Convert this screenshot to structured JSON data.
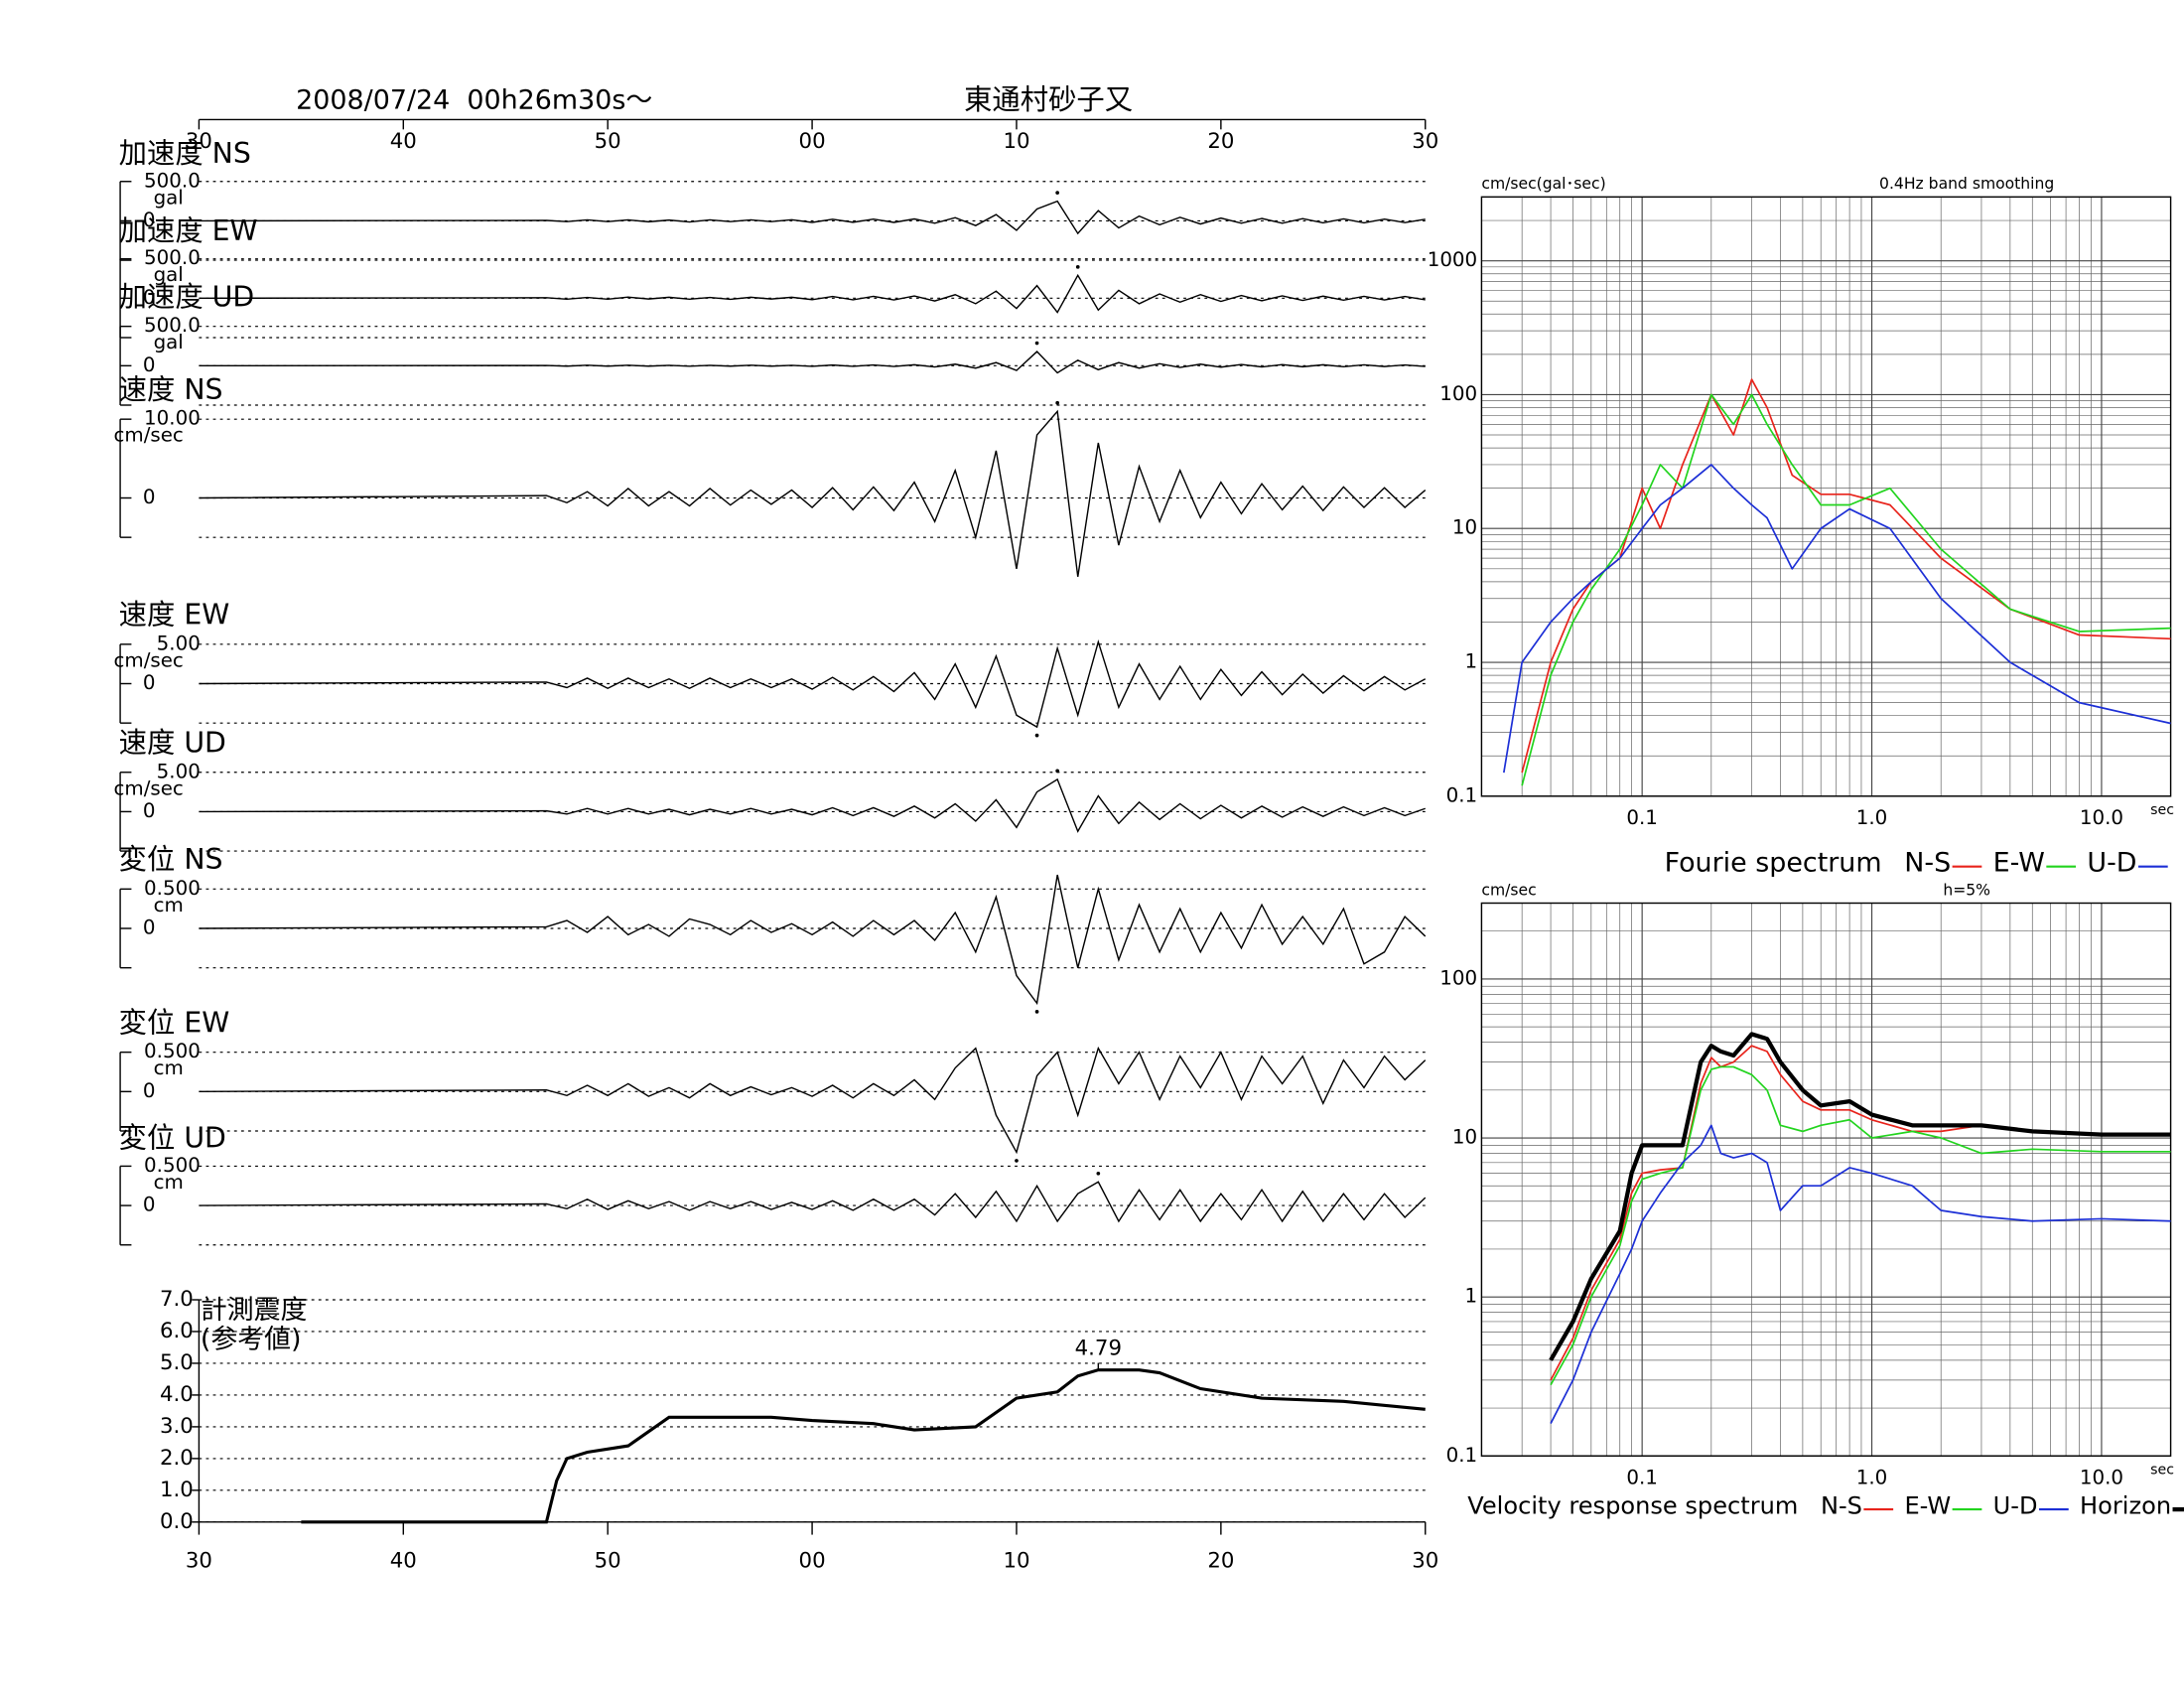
{
  "header": {
    "date": "2008/07/24  00h26m30s〜",
    "station": "東通村砂子又"
  },
  "chart_data": [
    {
      "type": "waveform",
      "color": "#000000",
      "xlim": [
        0,
        60
      ],
      "xticks": [
        {
          "value": 0,
          "label": "30"
        },
        {
          "value": 10,
          "label": "40"
        },
        {
          "value": 20,
          "label": "50"
        },
        {
          "value": 30,
          "label": "00"
        },
        {
          "value": 40,
          "label": "10"
        },
        {
          "value": 50,
          "label": "20"
        },
        {
          "value": 60,
          "label": "30"
        }
      ],
      "x": [
        0,
        17,
        18,
        19,
        20,
        21,
        22,
        23,
        24,
        25,
        26,
        27,
        28,
        29,
        30,
        31,
        32,
        33,
        34,
        35,
        36,
        37,
        38,
        39,
        40,
        41,
        42,
        43,
        44,
        45,
        46,
        47,
        48,
        49,
        50,
        51,
        52,
        53,
        54,
        55,
        56,
        57,
        58,
        59,
        60
      ],
      "series": [
        {
          "name": "加速度 NS",
          "unit": "gal",
          "ylim": [
            -500,
            500
          ],
          "yticks": [
            {
              "value": 500,
              "label": "500.0"
            },
            0
          ],
          "values": [
            0,
            5,
            -10,
            12,
            -10,
            12,
            -12,
            10,
            -14,
            12,
            -10,
            12,
            -10,
            14,
            -20,
            20,
            -18,
            22,
            -20,
            24,
            -30,
            40,
            -60,
            80,
            -120,
            150,
            250,
            -160,
            130,
            -90,
            60,
            -50,
            45,
            -40,
            35,
            -30,
            30,
            -30,
            28,
            -25,
            25,
            -25,
            22,
            -22,
            20
          ]
        },
        {
          "name": "加速度 EW",
          "unit": "gal",
          "ylim": [
            -500,
            500
          ],
          "yticks": [
            {
              "value": 500,
              "label": "500.0"
            },
            0
          ],
          "values": [
            0,
            6,
            -12,
            10,
            -12,
            14,
            -10,
            12,
            -12,
            10,
            -14,
            12,
            -10,
            12,
            -18,
            22,
            -20,
            24,
            -22,
            28,
            -35,
            45,
            -70,
            90,
            -130,
            160,
            -180,
            290,
            -150,
            100,
            -70,
            55,
            -50,
            45,
            -40,
            35,
            -32,
            30,
            -28,
            26,
            -25,
            24,
            -22,
            22,
            -20
          ]
        },
        {
          "name": "加速度 UD",
          "unit": "gal",
          "ylim": [
            -500,
            500
          ],
          "yticks": [
            {
              "value": 500,
              "label": "500.0"
            },
            0
          ],
          "values": [
            0,
            3,
            -5,
            6,
            -5,
            6,
            -5,
            5,
            -6,
            5,
            -5,
            6,
            -5,
            5,
            -8,
            9,
            -8,
            10,
            -9,
            12,
            -15,
            20,
            -30,
            40,
            -60,
            180,
            -90,
            70,
            -50,
            40,
            -30,
            25,
            -22,
            20,
            -18,
            16,
            -15,
            14,
            -13,
            12,
            -12,
            11,
            -10,
            10,
            -9
          ]
        },
        {
          "name": "速度 NS",
          "unit": "cm/sec",
          "ylim": [
            -10,
            10
          ],
          "yticks": [
            {
              "value": 10,
              "label": "10.00"
            },
            0
          ],
          "values": [
            0,
            0.3,
            -0.6,
            0.8,
            -1,
            1.2,
            -1,
            0.8,
            -1,
            1.2,
            -0.9,
            1,
            -0.8,
            1,
            -1.2,
            1.3,
            -1.5,
            1.4,
            -1.6,
            2,
            -3,
            3.5,
            -5,
            6,
            -9,
            8,
            11,
            -10,
            7,
            -6,
            4,
            -3,
            3.5,
            -2.5,
            2,
            -2,
            1.8,
            -1.5,
            1.5,
            -1.6,
            1.4,
            -1.2,
            1.3,
            -1.2,
            1
          ]
        },
        {
          "name": "速度 EW",
          "unit": "cm/sec",
          "ylim": [
            -5,
            5
          ],
          "yticks": [
            {
              "value": 5,
              "label": "5.00"
            },
            0
          ],
          "values": [
            0,
            0.2,
            -0.5,
            0.7,
            -0.6,
            0.7,
            -0.5,
            0.6,
            -0.6,
            0.7,
            -0.5,
            0.6,
            -0.5,
            0.6,
            -0.7,
            0.8,
            -0.8,
            0.9,
            -1,
            1.4,
            -2,
            2.5,
            -3,
            3.5,
            -4,
            -5.5,
            4.5,
            -4,
            5.3,
            -3,
            2.5,
            -2,
            2.2,
            -2,
            1.8,
            -1.5,
            1.5,
            -1.4,
            1.2,
            -1.2,
            1,
            -0.9,
            0.9,
            -0.8,
            0.6
          ]
        },
        {
          "name": "速度 UD",
          "unit": "cm/sec",
          "ylim": [
            -5,
            5
          ],
          "yticks": [
            {
              "value": 5,
              "label": "5.00"
            },
            0
          ],
          "values": [
            0,
            0.1,
            -0.3,
            0.4,
            -0.3,
            0.4,
            -0.3,
            0.3,
            -0.4,
            0.3,
            -0.3,
            0.4,
            -0.3,
            0.3,
            -0.4,
            0.5,
            -0.5,
            0.5,
            -0.6,
            0.7,
            -0.8,
            1,
            -1.2,
            1.5,
            -2,
            2.5,
            4.1,
            -2.5,
            2,
            -1.5,
            1.2,
            -1,
            1,
            -0.9,
            0.8,
            -0.8,
            0.7,
            -0.7,
            0.6,
            -0.6,
            0.6,
            -0.5,
            0.5,
            -0.5,
            0.4
          ]
        },
        {
          "name": "変位 NS",
          "unit": "cm",
          "ylim": [
            -0.5,
            0.5
          ],
          "yticks": [
            {
              "value": 0.5,
              "label": "0.500"
            },
            0
          ],
          "values": [
            0,
            0.02,
            0.1,
            -0.05,
            0.15,
            -0.08,
            0.05,
            -0.1,
            0.12,
            0.05,
            -0.08,
            0.1,
            -0.05,
            0.06,
            -0.08,
            0.08,
            -0.1,
            0.1,
            -0.08,
            0.1,
            -0.15,
            0.2,
            -0.3,
            0.4,
            -0.6,
            -0.95,
            0.68,
            -0.5,
            0.5,
            -0.4,
            0.3,
            -0.3,
            0.25,
            -0.3,
            0.2,
            -0.25,
            0.3,
            -0.2,
            0.15,
            -0.2,
            0.25,
            -0.45,
            -0.3,
            0.15,
            -0.1
          ]
        },
        {
          "name": "変位 EW",
          "unit": "cm",
          "ylim": [
            -0.5,
            0.5
          ],
          "yticks": [
            {
              "value": 0.5,
              "label": "0.500"
            },
            0
          ],
          "values": [
            0,
            0.02,
            -0.05,
            0.08,
            -0.05,
            0.1,
            -0.06,
            0.05,
            -0.08,
            0.1,
            -0.05,
            0.06,
            -0.04,
            0.05,
            -0.06,
            0.08,
            -0.08,
            0.1,
            -0.05,
            0.15,
            -0.1,
            0.3,
            0.55,
            -0.3,
            -0.77,
            0.2,
            0.5,
            -0.3,
            0.55,
            0.1,
            0.5,
            -0.1,
            0.45,
            0.05,
            0.5,
            -0.1,
            0.45,
            0.1,
            0.45,
            -0.15,
            0.4,
            0.05,
            0.45,
            0.15,
            0.4
          ]
        },
        {
          "name": "変位 UD",
          "unit": "cm",
          "ylim": [
            -0.5,
            0.5
          ],
          "yticks": [
            {
              "value": 0.5,
              "label": "0.500"
            },
            0
          ],
          "values": [
            0,
            0.02,
            -0.04,
            0.08,
            -0.05,
            0.06,
            -0.04,
            0.05,
            -0.06,
            0.05,
            -0.04,
            0.05,
            -0.05,
            0.04,
            -0.05,
            0.06,
            -0.06,
            0.08,
            -0.06,
            0.08,
            -0.12,
            0.15,
            -0.15,
            0.18,
            -0.2,
            0.25,
            -0.2,
            0.15,
            0.3,
            -0.2,
            0.2,
            -0.18,
            0.2,
            -0.2,
            0.15,
            -0.18,
            0.2,
            -0.2,
            0.18,
            -0.2,
            0.15,
            -0.18,
            0.15,
            -0.15,
            0.1
          ]
        }
      ]
    },
    {
      "type": "line",
      "title": [
        "計測震度",
        "(参考値)"
      ],
      "color": "#000000",
      "peak": 4.79,
      "xlim": [
        0,
        60
      ],
      "xticks": [
        {
          "value": 0,
          "label": "30"
        },
        {
          "value": 10,
          "label": "40"
        },
        {
          "value": 20,
          "label": "50"
        },
        {
          "value": 30,
          "label": "00"
        },
        {
          "value": 40,
          "label": "10"
        },
        {
          "value": 50,
          "label": "20"
        },
        {
          "value": 60,
          "label": "30"
        }
      ],
      "ylim": [
        0,
        7
      ],
      "yticks": [
        {
          "value": 0,
          "label": "0.0"
        },
        {
          "value": 1,
          "label": "1.0"
        },
        {
          "value": 2,
          "label": "2.0"
        },
        {
          "value": 3,
          "label": "3.0"
        },
        {
          "value": 4,
          "label": "4.0"
        },
        {
          "value": 5,
          "label": "5.0"
        },
        {
          "value": 6,
          "label": "6.0"
        },
        {
          "value": 7,
          "label": "7.0"
        }
      ],
      "x": [
        5,
        17,
        17.5,
        18,
        19,
        21,
        23,
        25,
        28,
        30,
        33,
        35,
        38,
        40,
        42,
        43,
        44,
        46,
        47,
        49,
        52,
        56,
        60
      ],
      "values": [
        0,
        0,
        1.3,
        2,
        2.2,
        2.4,
        3.3,
        3.3,
        3.3,
        3.2,
        3.1,
        2.9,
        3.0,
        3.9,
        4.1,
        4.6,
        4.79,
        4.79,
        4.7,
        4.2,
        3.9,
        3.8,
        3.55
      ]
    },
    {
      "type": "spectrum",
      "title": "Fourie spectrum",
      "ylabel": "cm/sec(gal･sec)",
      "subtitle": "0.4Hz band smoothing",
      "xlabel": "sec",
      "log": true,
      "grid": true,
      "xlim": [
        0.02,
        20
      ],
      "ylim": [
        0.1,
        3000
      ],
      "xticks": [
        0.1,
        {
          "value": 1,
          "label": "1.0"
        },
        {
          "value": 10,
          "label": "10.0"
        }
      ],
      "yticks": [
        0.1,
        1,
        10,
        100,
        1000
      ],
      "minor_xticks": [
        0.02,
        0.03,
        0.04,
        0.05,
        0.06,
        0.07,
        0.08,
        0.09,
        0.2,
        0.3,
        0.4,
        0.5,
        0.6,
        0.7,
        0.8,
        0.9,
        2,
        3,
        4,
        5,
        6,
        7,
        8,
        9,
        20
      ],
      "minor_yticks": [
        0.2,
        0.3,
        0.4,
        0.5,
        0.6,
        0.7,
        0.8,
        0.9,
        2,
        3,
        4,
        5,
        6,
        7,
        8,
        9,
        20,
        30,
        40,
        50,
        60,
        70,
        80,
        90,
        200,
        300,
        400,
        500,
        600,
        700,
        800,
        900,
        2000,
        3000
      ],
      "x": [
        0.025,
        0.03,
        0.04,
        0.05,
        0.06,
        0.08,
        0.1,
        0.12,
        0.15,
        0.2,
        0.25,
        0.3,
        0.35,
        0.45,
        0.6,
        0.8,
        1.2,
        2,
        4,
        8,
        20
      ],
      "series": [
        {
          "name": "N-S",
          "color": "#e8231b",
          "values": [
            null,
            0.15,
            1,
            2.5,
            4,
            6,
            20,
            10,
            30,
            100,
            50,
            130,
            80,
            25,
            18,
            18,
            15,
            6,
            2.5,
            1.6,
            1.5
          ]
        },
        {
          "name": "E-W",
          "color": "#22d41e",
          "values": [
            null,
            0.12,
            0.8,
            2,
            3.5,
            7,
            15,
            30,
            20,
            100,
            60,
            100,
            60,
            30,
            15,
            15,
            20,
            7,
            2.5,
            1.7,
            1.8
          ]
        },
        {
          "name": "U-D",
          "color": "#1c2fd6",
          "values": [
            0.15,
            1,
            2,
            3,
            4,
            6,
            10,
            15,
            20,
            30,
            20,
            15,
            12,
            5,
            10,
            14,
            10,
            3,
            1,
            0.5,
            0.35
          ]
        }
      ]
    },
    {
      "type": "spectrum",
      "title": "Velocity response spectrum",
      "ylabel": "cm/sec",
      "subtitle": "h=5%",
      "xlabel": "sec",
      "log": true,
      "grid": true,
      "xlim": [
        0.02,
        20
      ],
      "ylim": [
        0.1,
        300
      ],
      "xticks": [
        0.1,
        {
          "value": 1,
          "label": "1.0"
        },
        {
          "value": 10,
          "label": "10.0"
        }
      ],
      "yticks": [
        0.1,
        1,
        10,
        100
      ],
      "minor_xticks": [
        0.02,
        0.03,
        0.04,
        0.05,
        0.06,
        0.07,
        0.08,
        0.09,
        0.2,
        0.3,
        0.4,
        0.5,
        0.6,
        0.7,
        0.8,
        0.9,
        2,
        3,
        4,
        5,
        6,
        7,
        8,
        9,
        20
      ],
      "minor_yticks": [
        0.2,
        0.3,
        0.4,
        0.5,
        0.6,
        0.7,
        0.8,
        0.9,
        2,
        3,
        4,
        5,
        6,
        7,
        8,
        9,
        20,
        30,
        40,
        50,
        60,
        70,
        80,
        90,
        200,
        300
      ],
      "x": [
        0.04,
        0.05,
        0.06,
        0.08,
        0.09,
        0.1,
        0.12,
        0.15,
        0.18,
        0.2,
        0.22,
        0.25,
        0.3,
        0.35,
        0.4,
        0.5,
        0.6,
        0.8,
        1.0,
        1.5,
        2,
        3,
        5,
        10,
        20
      ],
      "series": [
        {
          "name": "N-S",
          "color": "#e8231b",
          "values": [
            0.3,
            0.55,
            1.1,
            2.3,
            4.5,
            6,
            6.3,
            6.5,
            22,
            32,
            28,
            30,
            38,
            35,
            25,
            17,
            15,
            15,
            13,
            11,
            11,
            12,
            11,
            10.5,
            10.5
          ]
        },
        {
          "name": "E-W",
          "color": "#22d41e",
          "values": [
            0.28,
            0.5,
            1.0,
            2.1,
            4,
            5.5,
            6,
            6.5,
            20,
            27,
            28,
            28,
            25,
            20,
            12,
            11,
            12,
            13,
            10,
            11,
            10,
            8,
            8.5,
            8.2,
            8.2
          ]
        },
        {
          "name": "U-D",
          "color": "#1c2fd6",
          "values": [
            0.16,
            0.3,
            0.6,
            1.4,
            2,
            3,
            4.5,
            7,
            9,
            12,
            8,
            7.5,
            8,
            7,
            3.5,
            5,
            5,
            6.5,
            6,
            5,
            3.5,
            3.2,
            3.0,
            3.1,
            3.0
          ]
        },
        {
          "name": "Horizon",
          "color": "#000000",
          "linewidth": 3,
          "values": [
            0.4,
            0.7,
            1.3,
            2.6,
            6,
            9,
            9,
            9,
            30,
            38,
            35,
            33,
            45,
            42,
            30,
            20,
            16,
            17,
            14,
            12,
            12,
            12,
            11,
            10.5,
            10.5
          ]
        }
      ]
    }
  ]
}
